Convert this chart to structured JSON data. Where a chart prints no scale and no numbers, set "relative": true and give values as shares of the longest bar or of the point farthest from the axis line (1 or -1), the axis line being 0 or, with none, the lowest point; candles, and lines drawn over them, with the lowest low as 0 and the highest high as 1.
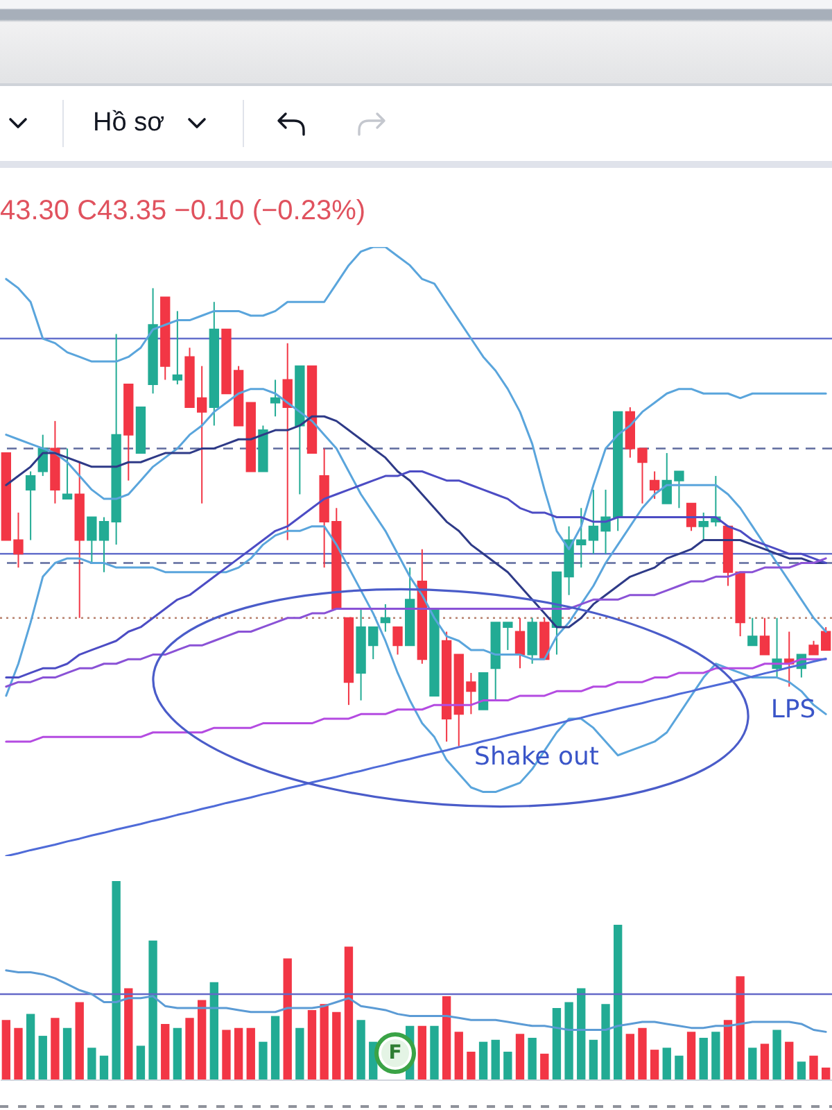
{
  "chart_data": [
    {
      "type": "other",
      "annotations": [
        "Hồ sơ"
      ]
    },
    {
      "type": "candlestick",
      "title": "43.30 C43.35 −0.10 (−0.23%)",
      "relative": true,
      "categories": [
        null,
        null,
        null,
        null,
        null,
        null,
        null,
        null,
        null,
        null,
        null,
        null,
        null,
        null,
        null,
        null,
        null,
        null,
        null,
        null,
        null,
        null,
        null,
        null,
        null,
        null,
        null,
        null,
        null,
        null,
        null,
        null,
        null,
        null,
        null,
        null,
        null,
        null,
        null,
        null,
        null,
        null,
        null,
        null,
        null,
        null,
        null,
        null,
        null,
        null,
        null,
        null,
        null,
        null,
        null,
        null,
        null,
        null,
        null,
        null,
        null,
        null,
        null,
        null,
        null,
        null,
        null,
        null
      ],
      "ohlc": [
        [
          0.64,
          0.64,
          0.45,
          0.45
        ],
        [
          0.45,
          0.51,
          0.39,
          0.42
        ],
        [
          0.56,
          0.6,
          0.45,
          0.59
        ],
        [
          0.6,
          0.68,
          0.59,
          0.65
        ],
        [
          0.65,
          0.71,
          0.53,
          0.56
        ],
        [
          0.54,
          0.65,
          0.54,
          0.55
        ],
        [
          0.55,
          0.62,
          0.28,
          0.45
        ],
        [
          0.45,
          0.5,
          0.4,
          0.5
        ],
        [
          0.45,
          0.5,
          0.38,
          0.49
        ],
        [
          0.49,
          0.9,
          0.44,
          0.68
        ],
        [
          0.79,
          0.79,
          0.58,
          0.68
        ],
        [
          0.64,
          0.74,
          0.64,
          0.74
        ],
        [
          0.79,
          1,
          0.77,
          0.92
        ],
        [
          0.98,
          0.98,
          0.8,
          0.83
        ],
        [
          0.8,
          0.95,
          0.79,
          0.81
        ],
        [
          0.85,
          0.87,
          0.74,
          0.74
        ],
        [
          0.76,
          0.83,
          0.53,
          0.73
        ],
        [
          0.74,
          0.97,
          0.7,
          0.91
        ],
        [
          0.91,
          0.91,
          0.77,
          0.77
        ],
        [
          0.82,
          0.83,
          0.7,
          0.7
        ],
        [
          0.75,
          0.75,
          0.6,
          0.6
        ],
        [
          0.6,
          0.7,
          0.6,
          0.69
        ],
        [
          0.75,
          0.8,
          0.72,
          0.76
        ],
        [
          0.8,
          0.88,
          0.45,
          0.74
        ],
        [
          0.7,
          0.83,
          0.55,
          0.83
        ],
        [
          0.83,
          0.83,
          0.64,
          0.64
        ],
        [
          0.59,
          0.65,
          0.39,
          0.49
        ],
        [
          0.49,
          0.52,
          0.3,
          0.3
        ],
        [
          0.28,
          0.28,
          0.09,
          0.14
        ],
        [
          0.16,
          0.3,
          0.1,
          0.26
        ],
        [
          0.22,
          0.26,
          0.19,
          0.26
        ],
        [
          0.27,
          0.31,
          0.25,
          0.28
        ],
        [
          0.26,
          0.26,
          0.2,
          0.22
        ],
        [
          0.22,
          0.39,
          0.22,
          0.32
        ],
        [
          0.36,
          0.43,
          0.18,
          0.19
        ],
        [
          0.11,
          0.3,
          0.11,
          0.3
        ],
        [
          0.23,
          0.25,
          0.01,
          0.06
        ],
        [
          0.2,
          0.2,
          0,
          0.07
        ],
        [
          0.14,
          0.16,
          0.07,
          0.12
        ],
        [
          0.08,
          0.16,
          0.08,
          0.16
        ],
        [
          0.17,
          0.27,
          0.1,
          0.27
        ],
        [
          0.26,
          0.27,
          0.21,
          0.27
        ],
        [
          0.25,
          0.28,
          0.17,
          0.2
        ],
        [
          0.2,
          0.28,
          0.18,
          0.27
        ],
        [
          0.27,
          0.28,
          0.19,
          0.19
        ],
        [
          0.26,
          0.38,
          0.2,
          0.38
        ],
        [
          0.37,
          0.48,
          0.33,
          0.45
        ],
        [
          0.44,
          0.52,
          0.39,
          0.45
        ],
        [
          0.45,
          0.56,
          0.42,
          0.48
        ],
        [
          0.47,
          0.56,
          0.42,
          0.5
        ],
        [
          0.5,
          0.73,
          0.47,
          0.73
        ],
        [
          0.73,
          0.74,
          0.63,
          0.65
        ],
        [
          0.65,
          0.65,
          0.53,
          0.62
        ],
        [
          0.58,
          0.6,
          0.54,
          0.56
        ],
        [
          0.53,
          0.64,
          0.53,
          0.58
        ],
        [
          0.58,
          0.6,
          0.52,
          0.6
        ],
        [
          0.53,
          0.53,
          0.47,
          0.48
        ],
        [
          0.48,
          0.51,
          0.45,
          0.49
        ],
        [
          0.49,
          0.59,
          0.48,
          0.5
        ],
        [
          0.48,
          0.48,
          0.35,
          0.38
        ],
        [
          0.38,
          0.38,
          0.24,
          0.27
        ],
        [
          0.22,
          0.28,
          0.22,
          0.24
        ],
        [
          0.24,
          0.28,
          0.2,
          0.2
        ],
        [
          0.17,
          0.28,
          0.15,
          0.19
        ],
        [
          0.19,
          0.25,
          0.13,
          0.18
        ],
        [
          0.17,
          0.2,
          0.15,
          0.2
        ],
        [
          0.22,
          0.23,
          0.2,
          0.2
        ],
        [
          0.25,
          0.26,
          0.21,
          0.21
        ]
      ],
      "colors": [
        "#f23645",
        "#f23645",
        "#22ab94",
        "#22ab94",
        "#f23645",
        "#22ab94",
        "#f23645",
        "#22ab94",
        "#22ab94",
        "#22ab94",
        "#f23645",
        "#22ab94",
        "#22ab94",
        "#f23645",
        "#22ab94",
        "#f23645",
        "#f23645",
        "#22ab94",
        "#f23645",
        "#f23645",
        "#f23645",
        "#22ab94",
        "#22ab94",
        "#f23645",
        "#22ab94",
        "#f23645",
        "#f23645",
        "#f23645",
        "#f23645",
        "#22ab94",
        "#22ab94",
        "#22ab94",
        "#f23645",
        "#22ab94",
        "#f23645",
        "#22ab94",
        "#f23645",
        "#f23645",
        "#f23645",
        "#22ab94",
        "#22ab94",
        "#22ab94",
        "#f23645",
        "#22ab94",
        "#f23645",
        "#22ab94",
        "#22ab94",
        "#22ab94",
        "#22ab94",
        "#22ab94",
        "#22ab94",
        "#f23645",
        "#f23645",
        "#f23645",
        "#22ab94",
        "#22ab94",
        "#f23645",
        "#22ab94",
        "#22ab94",
        "#f23645",
        "#f23645",
        "#22ab94",
        "#f23645",
        "#22ab94",
        "#f23645",
        "#22ab94",
        "#f23645",
        "#f23645"
      ],
      "series": [
        {
          "type": "line",
          "color": "#5aa5dc",
          "values": [
            1.02,
            1.0,
            0.97,
            0.89,
            0.88,
            0.86,
            0.85,
            0.84,
            0.84,
            0.84,
            0.85,
            0.87,
            0.91,
            0.92,
            0.93,
            0.93,
            0.94,
            0.95,
            0.95,
            0.95,
            0.94,
            0.94,
            0.95,
            0.97,
            0.97,
            0.97,
            0.97,
            1.01,
            1.05,
            1.08,
            1.09,
            1.09,
            1.07,
            1.05,
            1.02,
            1.01,
            0.97,
            0.93,
            0.89,
            0.85,
            0.82,
            0.78,
            0.73,
            0.66,
            0.56,
            0.47,
            0.43,
            0.48,
            0.57,
            0.65,
            0.68,
            0.7,
            0.73,
            0.75,
            0.77,
            0.78,
            0.78,
            0.77,
            0.77,
            0.77,
            0.76,
            0.77,
            0.77,
            0.77,
            0.77,
            0.77,
            0.77,
            0.77
          ]
        },
        {
          "type": "line",
          "color": "#5aa5dc",
          "values": [
            0.11,
            0.18,
            0.27,
            0.37,
            0.4,
            0.41,
            0.41,
            0.4,
            0.4,
            0.39,
            0.39,
            0.39,
            0.39,
            0.38,
            0.38,
            0.38,
            0.38,
            0.38,
            0.38,
            0.39,
            0.41,
            0.44,
            0.46,
            0.47,
            0.47,
            0.48,
            0.48,
            0.44,
            0.39,
            0.34,
            0.29,
            0.23,
            0.16,
            0.1,
            0.05,
            0.02,
            -0.03,
            -0.06,
            -0.09,
            -0.1,
            -0.1,
            -0.09,
            -0.08,
            -0.05,
            -0.01,
            0.03,
            0.06,
            0.06,
            0.04,
            0.01,
            -0.02,
            -0.01,
            0.0,
            0.01,
            0.03,
            0.07,
            0.11,
            0.15,
            0.18,
            0.17,
            0.16,
            0.15,
            0.15,
            0.15,
            0.14,
            0.12,
            0.09,
            0.07
          ]
        },
        {
          "type": "line",
          "color": "#5aa5dc",
          "values": [
            0.68,
            0.67,
            0.66,
            0.65,
            0.64,
            0.62,
            0.59,
            0.56,
            0.54,
            0.54,
            0.55,
            0.58,
            0.61,
            0.63,
            0.65,
            0.68,
            0.7,
            0.73,
            0.75,
            0.77,
            0.78,
            0.78,
            0.77,
            0.75,
            0.73,
            0.71,
            0.68,
            0.65,
            0.6,
            0.55,
            0.51,
            0.47,
            0.42,
            0.37,
            0.33,
            0.28,
            0.24,
            0.23,
            0.21,
            0.21,
            0.2,
            0.2,
            0.2,
            0.19,
            0.19,
            0.24,
            0.27,
            0.31,
            0.35,
            0.4,
            0.44,
            0.48,
            0.52,
            0.55,
            0.57,
            0.57,
            0.57,
            0.57,
            0.57,
            0.55,
            0.52,
            0.48,
            0.44,
            0.4,
            0.36,
            0.32,
            0.28,
            0.25
          ]
        },
        {
          "type": "line",
          "color": "#2e3a87",
          "values": [
            0.57,
            0.59,
            0.61,
            0.64,
            0.64,
            0.63,
            0.62,
            0.61,
            0.61,
            0.61,
            0.62,
            0.62,
            0.63,
            0.64,
            0.64,
            0.64,
            0.65,
            0.65,
            0.66,
            0.67,
            0.67,
            0.68,
            0.69,
            0.69,
            0.7,
            0.72,
            0.72,
            0.71,
            0.69,
            0.67,
            0.65,
            0.63,
            0.6,
            0.58,
            0.55,
            0.52,
            0.49,
            0.47,
            0.44,
            0.42,
            0.4,
            0.38,
            0.35,
            0.32,
            0.29,
            0.26,
            0.26,
            0.28,
            0.31,
            0.33,
            0.35,
            0.37,
            0.38,
            0.39,
            0.41,
            0.42,
            0.43,
            0.45,
            0.45,
            0.45,
            0.45,
            0.44,
            0.43,
            0.42,
            0.41,
            0.41,
            0.4,
            0.4
          ]
        },
        {
          "type": "line",
          "color": "#4c4cc4",
          "values": [
            0.15,
            0.15,
            0.16,
            0.17,
            0.17,
            0.18,
            0.2,
            0.21,
            0.22,
            0.23,
            0.25,
            0.26,
            0.28,
            0.3,
            0.32,
            0.33,
            0.35,
            0.37,
            0.39,
            0.41,
            0.43,
            0.45,
            0.47,
            0.48,
            0.5,
            0.52,
            0.54,
            0.55,
            0.56,
            0.57,
            0.58,
            0.59,
            0.59,
            0.6,
            0.6,
            0.59,
            0.58,
            0.58,
            0.57,
            0.56,
            0.55,
            0.54,
            0.52,
            0.51,
            0.51,
            0.5,
            0.5,
            0.5,
            0.49,
            0.49,
            0.5,
            0.5,
            0.5,
            0.5,
            0.5,
            0.5,
            0.5,
            0.5,
            0.5,
            0.48,
            0.47,
            0.45,
            0.44,
            0.43,
            0.42,
            0.42,
            0.41,
            0.4
          ]
        },
        {
          "type": "line",
          "color": "#8a52d6",
          "values": [
            0.13,
            0.14,
            0.14,
            0.15,
            0.15,
            0.16,
            0.17,
            0.17,
            0.18,
            0.18,
            0.19,
            0.19,
            0.2,
            0.2,
            0.21,
            0.22,
            0.22,
            0.23,
            0.24,
            0.25,
            0.25,
            0.26,
            0.27,
            0.28,
            0.28,
            0.29,
            0.29,
            0.3,
            0.3,
            0.3,
            0.3,
            0.3,
            0.3,
            0.3,
            0.3,
            0.3,
            0.3,
            0.3,
            0.3,
            0.3,
            0.3,
            0.3,
            0.3,
            0.3,
            0.3,
            0.3,
            0.3,
            0.31,
            0.32,
            0.32,
            0.32,
            0.33,
            0.33,
            0.33,
            0.34,
            0.35,
            0.36,
            0.36,
            0.37,
            0.37,
            0.38,
            0.38,
            0.39,
            0.39,
            0.39,
            0.4,
            0.4,
            0.41
          ]
        },
        {
          "type": "line",
          "color": "#b44be1",
          "values": [
            0.01,
            0.01,
            0.01,
            0.02,
            0.02,
            0.02,
            0.02,
            0.02,
            0.02,
            0.02,
            0.02,
            0.02,
            0.03,
            0.03,
            0.03,
            0.03,
            0.03,
            0.04,
            0.04,
            0.04,
            0.04,
            0.05,
            0.05,
            0.05,
            0.05,
            0.05,
            0.06,
            0.06,
            0.06,
            0.07,
            0.07,
            0.07,
            0.08,
            0.08,
            0.08,
            0.09,
            0.09,
            0.09,
            0.09,
            0.1,
            0.1,
            0.1,
            0.11,
            0.11,
            0.11,
            0.12,
            0.12,
            0.12,
            0.13,
            0.13,
            0.14,
            0.14,
            0.14,
            0.15,
            0.15,
            0.16,
            0.16,
            0.16,
            0.17,
            0.17,
            0.17,
            0.17,
            0.18,
            0.18,
            0.18,
            0.19,
            0.19,
            0.19
          ]
        },
        {
          "type": "line",
          "color": "#4f6bd8",
          "values": [
            -0.24,
            -0.234,
            -0.227,
            -0.221,
            -0.215,
            -0.208,
            -0.202,
            -0.195,
            -0.189,
            -0.182,
            -0.176,
            -0.17,
            -0.163,
            -0.157,
            -0.15,
            -0.144,
            -0.137,
            -0.131,
            -0.124,
            -0.118,
            -0.112,
            -0.105,
            -0.099,
            -0.092,
            -0.086,
            -0.079,
            -0.073,
            -0.067,
            -0.06,
            -0.054,
            -0.047,
            -0.041,
            -0.034,
            -0.028,
            -0.021,
            -0.015,
            -0.009,
            -0.002,
            0.004,
            0.011,
            0.017,
            0.024,
            0.03,
            0.036,
            0.043,
            0.049,
            0.056,
            0.062,
            0.069,
            0.075,
            0.082,
            0.088,
            0.094,
            0.101,
            0.107,
            0.114,
            0.12,
            0.127,
            0.133,
            0.139,
            0.146,
            0.152,
            0.159,
            0.165,
            0.172,
            0.178,
            0.185,
            0.191
          ]
        }
      ],
      "ref_lines": [
        {
          "axis": "y",
          "value": 0.89,
          "color": "#6470cc"
        },
        {
          "axis": "y",
          "value": 0.65,
          "color": "#5f6b9e",
          "line_style": "dashed"
        },
        {
          "axis": "y",
          "value": 0.42,
          "color": "#6470cc"
        },
        {
          "axis": "y",
          "value": 0.4,
          "color": "#5f6b9e",
          "line_style": "dashed"
        },
        {
          "axis": "y",
          "value": 0.28,
          "color": "#b8826e",
          "line_style": "dotted"
        }
      ],
      "annotations": [
        "Shake out",
        "LPS"
      ]
    },
    {
      "type": "bar",
      "relative": true,
      "categories": [
        null,
        null,
        null,
        null,
        null,
        null,
        null,
        null,
        null,
        null,
        null,
        null,
        null,
        null,
        null,
        null,
        null,
        null,
        null,
        null,
        null,
        null,
        null,
        null,
        null,
        null,
        null,
        null,
        null,
        null,
        null,
        null,
        null,
        null,
        null,
        null,
        null,
        null,
        null,
        null,
        null,
        null,
        null,
        null,
        null,
        null,
        null,
        null,
        null,
        null,
        null,
        null,
        null,
        null,
        null,
        null,
        null,
        null,
        null,
        null,
        null,
        null,
        null,
        null,
        null,
        null,
        null,
        null
      ],
      "series": [
        {
          "values": [
            0.3,
            0.26,
            0.33,
            0.22,
            0.31,
            0.26,
            0.39,
            0.16,
            0.12,
            1,
            0.46,
            0.17,
            0.7,
            0.28,
            0.26,
            0.31,
            0.4,
            0.49,
            0.25,
            0.26,
            0.26,
            0.19,
            0.32,
            0.61,
            0.26,
            0.35,
            0.38,
            0.34,
            0.67,
            0.3,
            0.19,
            null,
            null,
            0.27,
            0.27,
            0.27,
            0.42,
            0.24,
            0.14,
            0.19,
            0.2,
            0.14,
            0.23,
            0.21,
            0.13,
            0.36,
            0.39,
            0.46,
            0.2,
            0.38,
            0.78,
            0.23,
            0.26,
            0.15,
            0.16,
            0.12,
            0.24,
            0.21,
            0.24,
            0.3,
            0.52,
            0.16,
            0.18,
            0.25,
            0.19,
            0.09,
            0.12,
            0.06
          ],
          "colors": [
            "#f23645",
            "#f23645",
            "#22ab94",
            "#22ab94",
            "#f23645",
            "#22ab94",
            "#f23645",
            "#22ab94",
            "#22ab94",
            "#22ab94",
            "#f23645",
            "#22ab94",
            "#22ab94",
            "#f23645",
            "#22ab94",
            "#f23645",
            "#f23645",
            "#22ab94",
            "#f23645",
            "#f23645",
            "#f23645",
            "#22ab94",
            "#22ab94",
            "#f23645",
            "#22ab94",
            "#f23645",
            "#f23645",
            "#f23645",
            "#f23645",
            "#22ab94",
            "#22ab94",
            "#22ab94",
            "#f23645",
            "#22ab94",
            "#f23645",
            "#22ab94",
            "#f23645",
            "#f23645",
            "#f23645",
            "#22ab94",
            "#22ab94",
            "#22ab94",
            "#f23645",
            "#22ab94",
            "#f23645",
            "#22ab94",
            "#22ab94",
            "#22ab94",
            "#22ab94",
            "#22ab94",
            "#22ab94",
            "#f23645",
            "#f23645",
            "#f23645",
            "#22ab94",
            "#22ab94",
            "#f23645",
            "#22ab94",
            "#22ab94",
            "#f23645",
            "#f23645",
            "#22ab94",
            "#f23645",
            "#22ab94",
            "#f23645",
            "#22ab94",
            "#f23645",
            "#f23645"
          ]
        },
        {
          "type": "line",
          "color": "#5b9bd5",
          "values": [
            0.55,
            0.54,
            0.54,
            0.53,
            0.51,
            0.48,
            0.45,
            0.43,
            0.39,
            0.39,
            0.41,
            0.41,
            0.42,
            0.37,
            0.36,
            0.36,
            0.36,
            0.36,
            0.36,
            0.35,
            0.34,
            0.34,
            0.34,
            0.36,
            0.36,
            0.36,
            0.37,
            0.39,
            0.41,
            0.37,
            0.36,
            0.35,
            0.33,
            0.32,
            0.32,
            0.32,
            0.32,
            0.31,
            0.3,
            0.3,
            0.3,
            0.29,
            0.28,
            0.27,
            0.27,
            0.26,
            0.25,
            0.25,
            0.25,
            0.25,
            0.27,
            0.28,
            0.29,
            0.29,
            0.28,
            0.27,
            0.26,
            0.26,
            0.27,
            0.27,
            0.28,
            0.29,
            0.29,
            0.29,
            0.29,
            0.28,
            0.25,
            0.24
          ]
        }
      ],
      "ref_lines": [
        {
          "axis": "y",
          "value": 0.43,
          "color": "#6468c8"
        }
      ],
      "annotations": [
        "F"
      ]
    }
  ]
}
